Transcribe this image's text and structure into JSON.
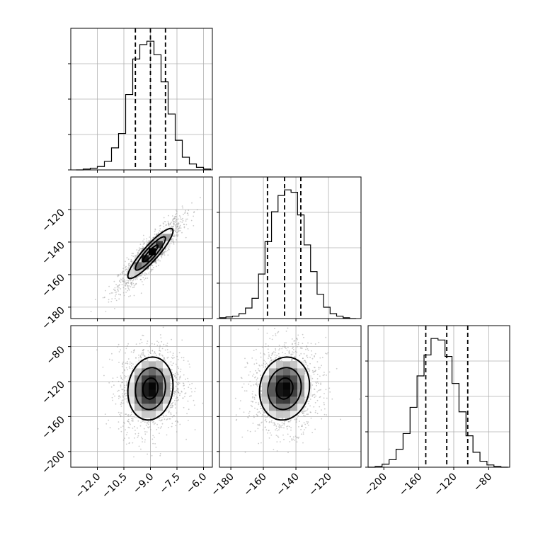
{
  "chart_data": {
    "type": "corner",
    "grid": true,
    "parameters": [
      {
        "range": [
          -13.5,
          -5.5
        ],
        "ticks": [
          -12.0,
          -10.5,
          -9.0,
          -7.5,
          -6.0
        ],
        "tick_labels": [
          "−12.0",
          "−10.5",
          "−9.0",
          "−7.5",
          "−6.0"
        ],
        "quantiles": [
          -9.85,
          -9.0,
          -8.15
        ],
        "hist_bins": [
          -13.2,
          -12.8,
          -12.4,
          -12.0,
          -11.6,
          -11.2,
          -10.8,
          -10.4,
          -10.0,
          -9.6,
          -9.2,
          -8.8,
          -8.4,
          -8.0,
          -7.6,
          -7.2,
          -6.8,
          -6.4,
          -6.0,
          -5.6
        ],
        "hist_counts": [
          0,
          1,
          2,
          4,
          10,
          26,
          43,
          89,
          131,
          148,
          152,
          136,
          104,
          66,
          35,
          15,
          7,
          3,
          1
        ]
      },
      {
        "range": [
          -187,
          -100
        ],
        "ticks": [
          -180,
          -160,
          -140,
          -120
        ],
        "tick_labels": [
          "−180",
          "−160",
          "−140",
          "−120"
        ],
        "quantiles": [
          -157.5,
          -147,
          -137
        ],
        "hist_bins": [
          -187,
          -183,
          -179,
          -175,
          -171,
          -167,
          -163,
          -159,
          -155,
          -151,
          -147,
          -143,
          -139,
          -135,
          -131,
          -127,
          -123,
          -119,
          -115,
          -111,
          -107,
          -103
        ],
        "hist_counts": [
          1,
          2,
          3,
          6,
          13,
          25,
          55,
          95,
          132,
          152,
          159,
          156,
          128,
          91,
          58,
          30,
          14,
          6,
          3,
          1,
          0
        ]
      },
      {
        "range": [
          -218,
          -56
        ],
        "ticks": [
          -200,
          -160,
          -120,
          -80
        ],
        "tick_labels": [
          "−200",
          "−160",
          "−120",
          "−80"
        ],
        "quantiles": [
          -152,
          -128,
          -104
        ],
        "hist_bins": [
          -218,
          -210,
          -202,
          -194,
          -186,
          -178,
          -170,
          -162,
          -154,
          -146,
          -138,
          -130,
          -122,
          -114,
          -106,
          -98,
          -90,
          -82,
          -74,
          -66,
          -58
        ],
        "hist_counts": [
          0,
          1,
          4,
          10,
          24,
          45,
          80,
          122,
          150,
          172,
          170,
          148,
          112,
          74,
          42,
          20,
          8,
          3,
          1,
          0
        ]
      }
    ],
    "correlations": {
      "1,0": 0.9,
      "2,0": 0.1,
      "2,1": 0.1
    },
    "contour_levels_sigma": [
      0.5,
      1.0,
      1.5
    ]
  }
}
